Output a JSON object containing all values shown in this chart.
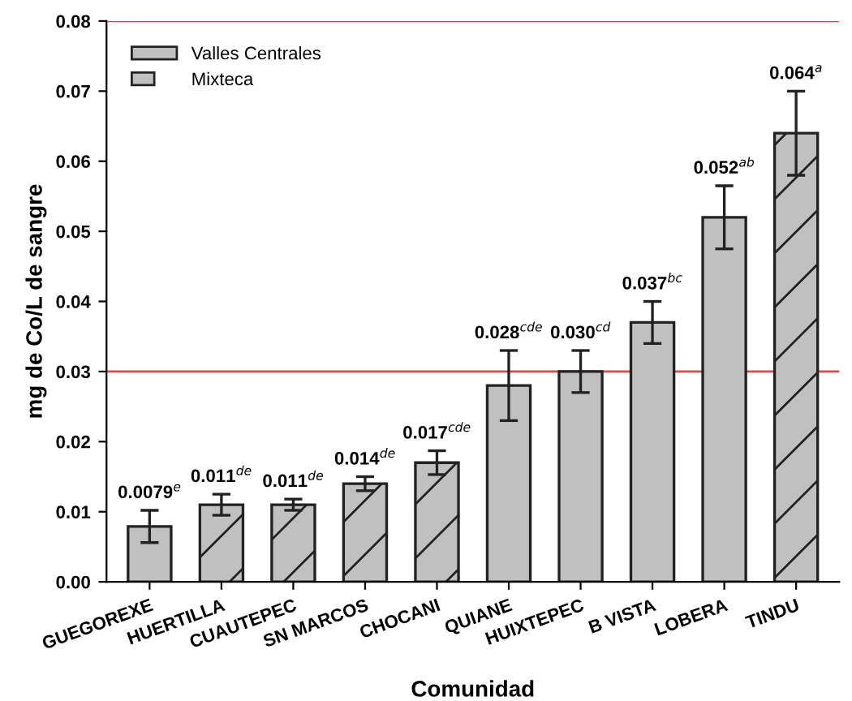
{
  "chart_data": {
    "type": "bar",
    "xlabel": "Comunidad",
    "ylabel": "mg de Co/L de sangre",
    "categories": [
      "GUEGOREXE",
      "HUERTILLA",
      "CUAUTEPEC",
      "SN MARCOS",
      "CHOCANI",
      "QUIANE",
      "HUIXTEPEC",
      "B VISTA",
      "LOBERA",
      "TINDU"
    ],
    "series": [
      {
        "name": "Valles Centrales",
        "color": "#c0c0c0",
        "values": [
          0.0079,
          null,
          null,
          null,
          null,
          0.028,
          0.03,
          0.037,
          0.052,
          null
        ],
        "errors": [
          0.0023,
          null,
          null,
          null,
          null,
          0.005,
          0.003,
          0.003,
          0.0045,
          null
        ],
        "value_labels": [
          "0.0079$^{e}$",
          null,
          null,
          null,
          null,
          "0.028$^{cde}$",
          "0.030$^{cd}$",
          "0.037$^{bc}$",
          "0.052$^{ab}$",
          null
        ]
      },
      {
        "name": "Mixteca",
        "color": "#c0c0c0",
        "values": [
          null,
          0.011,
          0.011,
          0.014,
          0.017,
          null,
          null,
          null,
          null,
          0.064
        ],
        "errors": [
          null,
          0.0015,
          0.0008,
          0.001,
          0.0017,
          null,
          null,
          null,
          null,
          0.006
        ],
        "value_labels": [
          null,
          "0.011$^{de}$",
          "0.011$^{de}$",
          "0.014$^{de}$",
          "0.017$^{cde}$",
          null,
          null,
          null,
          null,
          "0.064$^{a}$"
        ]
      }
    ],
    "ylim": [
      0,
      0.08
    ],
    "yticks": [
      {
        "value": 0,
        "label": "0.00"
      },
      {
        "value": 0.01,
        "label": "0.01"
      },
      {
        "value": 0.02,
        "label": "0.02"
      },
      {
        "value": 0.03,
        "label": "0.03"
      },
      {
        "value": 0.04,
        "label": "0.04"
      },
      {
        "value": 0.05,
        "label": "0.05"
      },
      {
        "value": 0.06,
        "label": "0.06"
      },
      {
        "value": 0.07,
        "label": "0.07"
      },
      {
        "value": 0.08,
        "label": "0.08"
      }
    ],
    "ref_lines": [
      {
        "axis": "y",
        "value": 0.03,
        "color": "#d05050"
      },
      {
        "axis": "y",
        "value": 0.08,
        "color": "#d05050"
      }
    ],
    "grid": false,
    "legend": "top left"
  }
}
